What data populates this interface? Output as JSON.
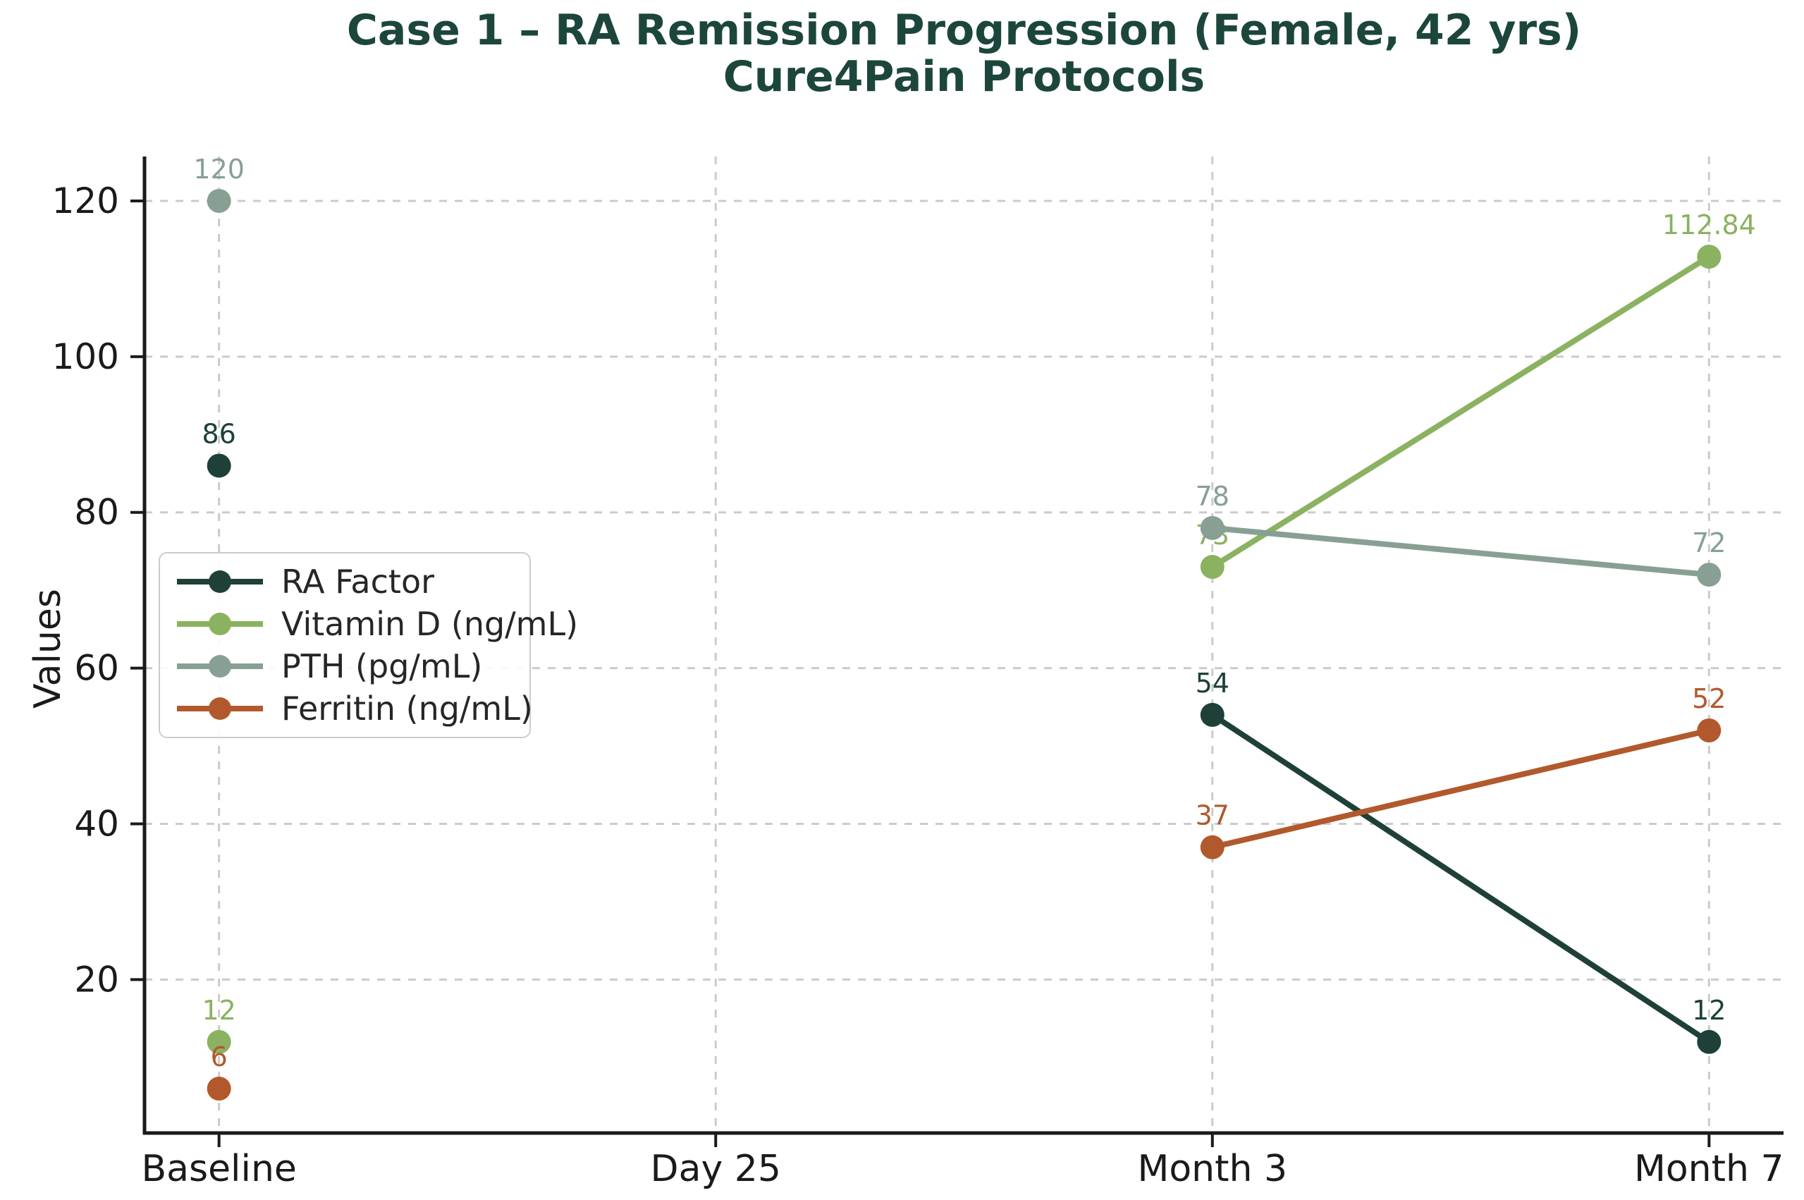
{
  "chart_data": {
    "type": "line",
    "title": "Case 1 – RA Remission Progression (Female, 42 yrs)",
    "subtitle": "Cure4Pain Protocols",
    "ylabel": "Values",
    "xlabel": "",
    "categories": [
      "Baseline",
      "Day 25",
      "Month 3",
      "Month 7"
    ],
    "yticks": [
      20,
      40,
      60,
      80,
      100,
      120
    ],
    "ylim": [
      0.3,
      125.7
    ],
    "grid": true,
    "grid_style": "dashed",
    "legend_position": "center left",
    "point_labels_shown": true,
    "series": [
      {
        "name": "RA Factor",
        "color": "#1e4038",
        "values": [
          86,
          null,
          54,
          12
        ]
      },
      {
        "name": "Vitamin D (ng/mL)",
        "color": "#8ab261",
        "values": [
          12,
          null,
          73,
          112.84
        ]
      },
      {
        "name": "PTH (pg/mL)",
        "color": "#87a093",
        "values": [
          120,
          null,
          78,
          72
        ]
      },
      {
        "name": "Ferritin (ng/mL)",
        "color": "#b1592d",
        "values": [
          6,
          null,
          37,
          52
        ]
      }
    ]
  },
  "colors": {
    "title": "#1c463c",
    "axis": "#1a1a1a",
    "tick_label": "#1a1a1a",
    "grid": "#cbcbcb",
    "legend_border": "#cccccc",
    "legend_text": "#262626",
    "background": "#ffffff"
  }
}
